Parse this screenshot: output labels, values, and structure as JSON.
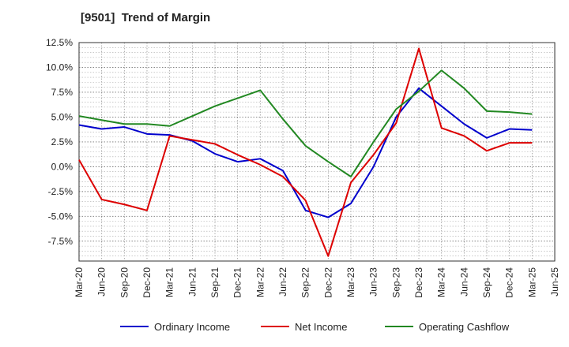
{
  "chart_data": {
    "type": "line",
    "title": "[9501]  Trend of Margin",
    "xlabel": "",
    "ylabel": "",
    "categories": [
      "Mar-20",
      "Jun-20",
      "Sep-20",
      "Dec-20",
      "Mar-21",
      "Jun-21",
      "Sep-21",
      "Dec-21",
      "Mar-22",
      "Jun-22",
      "Sep-22",
      "Dec-22",
      "Mar-23",
      "Jun-23",
      "Sep-23",
      "Dec-23",
      "Mar-24",
      "Jun-24",
      "Sep-24",
      "Dec-24",
      "Mar-25",
      "Jun-25"
    ],
    "y_ticks": [
      12.5,
      10.0,
      7.5,
      5.0,
      2.5,
      0.0,
      -2.5,
      -5.0,
      -7.5
    ],
    "y_tick_labels": [
      "12.5%",
      "10.0%",
      "7.5%",
      "5.0%",
      "2.5%",
      "0.0%",
      "-2.5%",
      "-5.0%",
      "-7.5%"
    ],
    "ylim": [
      -9.5,
      12.5
    ],
    "grid": true,
    "legend_position": "bottom",
    "series": [
      {
        "name": "Ordinary Income",
        "color": "#0000cc",
        "values": [
          4.2,
          3.8,
          4.0,
          3.3,
          3.2,
          2.6,
          1.3,
          0.5,
          0.8,
          -0.4,
          -4.4,
          -5.1,
          -3.7,
          0.0,
          5.0,
          7.9,
          6.1,
          4.3,
          2.9,
          3.8,
          3.7,
          null
        ]
      },
      {
        "name": "Net Income",
        "color": "#dd0000",
        "values": [
          0.7,
          -3.3,
          -3.8,
          -4.4,
          3.1,
          2.7,
          2.3,
          1.2,
          0.2,
          -1.0,
          -3.4,
          -9.0,
          -1.6,
          1.2,
          4.4,
          11.9,
          3.9,
          3.1,
          1.6,
          2.4,
          2.4,
          null
        ]
      },
      {
        "name": "Operating Cashflow",
        "color": "#228822",
        "values": [
          5.1,
          4.7,
          4.3,
          4.3,
          4.1,
          5.1,
          6.1,
          6.9,
          7.7,
          4.8,
          2.1,
          0.5,
          -1.0,
          2.5,
          5.8,
          7.6,
          9.7,
          7.9,
          5.6,
          5.5,
          5.3,
          null
        ]
      }
    ]
  }
}
